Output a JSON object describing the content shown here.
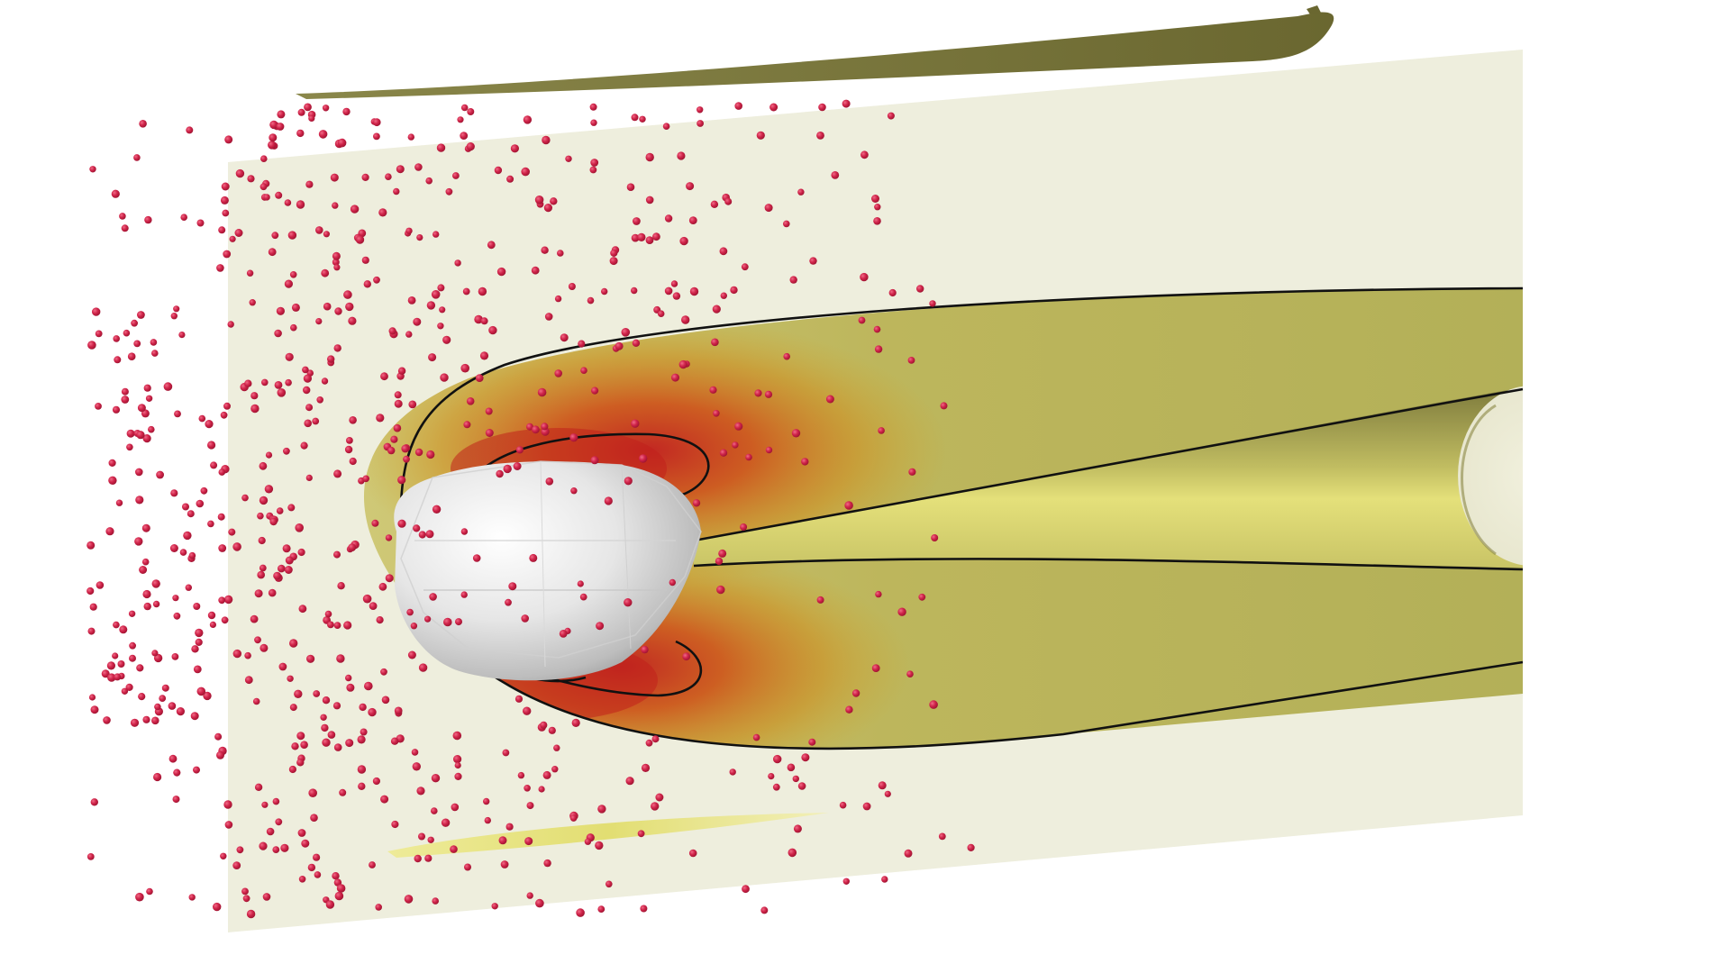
{
  "scene": {
    "background_color": "#ffffff",
    "plane_color": "#eeeedd",
    "plume_outer_color": "#b6b45a",
    "plume_inner_color": "#d9d66a",
    "hot_region_colors": [
      "#c8211e",
      "#d0561a",
      "#c98a1e"
    ],
    "object_color": "#e2e2e2",
    "particle_color": "#c8203e",
    "contour_line_color": "#111111",
    "streak_color": "#6f6c33",
    "small_streak_color": "#e4e07a",
    "particle_count_approx": 700
  }
}
